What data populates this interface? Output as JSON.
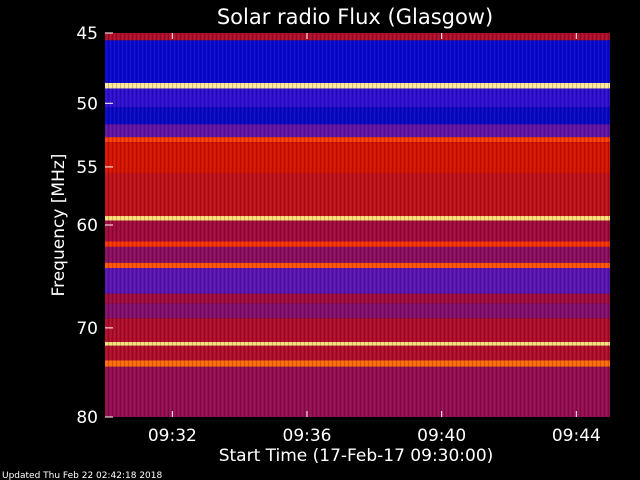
{
  "chart_data": {
    "type": "heatmap",
    "title": "Solar radio Flux (Glasgow)",
    "xlabel": "Start Time (17-Feb-17 09:30:00)",
    "ylabel": "Frequency [MHz]",
    "x_ticks": [
      "09:32",
      "09:36",
      "09:40",
      "09:44"
    ],
    "x_tick_minutes": [
      2,
      6,
      10,
      14
    ],
    "xlim_minutes": [
      0,
      15
    ],
    "y_ticks": [
      45,
      50,
      55,
      60,
      70,
      80
    ],
    "ylim_mhz": [
      45,
      80
    ],
    "y_scale": "log",
    "grid": false,
    "colormap": "blue-red-yellow-white",
    "bands": [
      {
        "f1": 45.0,
        "f2": 45.5,
        "level": 0.5
      },
      {
        "f1": 45.5,
        "f2": 48.5,
        "level": 0.08
      },
      {
        "f1": 48.5,
        "f2": 48.9,
        "level": 0.97
      },
      {
        "f1": 48.9,
        "f2": 50.3,
        "level": 0.18
      },
      {
        "f1": 50.3,
        "f2": 51.6,
        "level": 0.07
      },
      {
        "f1": 51.6,
        "f2": 52.6,
        "level": 0.3
      },
      {
        "f1": 52.6,
        "f2": 53.0,
        "level": 0.78
      },
      {
        "f1": 53.0,
        "f2": 55.5,
        "level": 0.62
      },
      {
        "f1": 55.5,
        "f2": 59.2,
        "level": 0.55
      },
      {
        "f1": 59.2,
        "f2": 59.6,
        "level": 0.95
      },
      {
        "f1": 59.6,
        "f2": 61.5,
        "level": 0.45
      },
      {
        "f1": 61.5,
        "f2": 62.0,
        "level": 0.75
      },
      {
        "f1": 62.0,
        "f2": 63.5,
        "level": 0.4
      },
      {
        "f1": 63.5,
        "f2": 64.0,
        "level": 0.8
      },
      {
        "f1": 64.0,
        "f2": 66.5,
        "level": 0.28
      },
      {
        "f1": 66.5,
        "f2": 67.5,
        "level": 0.45
      },
      {
        "f1": 67.5,
        "f2": 69.0,
        "level": 0.38
      },
      {
        "f1": 69.0,
        "f2": 71.5,
        "level": 0.5
      },
      {
        "f1": 71.5,
        "f2": 71.9,
        "level": 0.95
      },
      {
        "f1": 71.9,
        "f2": 73.5,
        "level": 0.5
      },
      {
        "f1": 73.5,
        "f2": 74.2,
        "level": 0.82
      },
      {
        "f1": 74.2,
        "f2": 80.0,
        "level": 0.42
      }
    ]
  },
  "updated": "Updated Thu Feb 22 02:42:18 2018"
}
